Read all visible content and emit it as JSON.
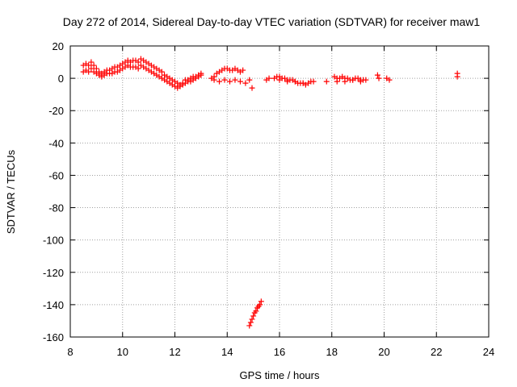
{
  "chart_data": {
    "type": "scatter",
    "title": "Day 272 of 2014, Sidereal Day-to-day VTEC variation (SDTVAR) for receiver maw1",
    "xlabel": "GPS time / hours",
    "ylabel": "SDTVAR / TECUs",
    "xlim": [
      8,
      24
    ],
    "ylim": [
      -160,
      20
    ],
    "xticks": [
      8,
      10,
      12,
      14,
      16,
      18,
      20,
      22,
      24
    ],
    "yticks": [
      20,
      0,
      -20,
      -40,
      -60,
      -80,
      -100,
      -120,
      -140,
      -160
    ],
    "grid": true,
    "marker": "+",
    "color": "#ff0000",
    "series": [
      {
        "name": "SDTVAR",
        "x": [
          8.5,
          8.6,
          8.7,
          8.8,
          8.9,
          9.0,
          9.1,
          9.2,
          9.3,
          9.4,
          9.5,
          9.6,
          9.7,
          9.8,
          9.9,
          10.0,
          10.1,
          10.2,
          10.3,
          10.4,
          10.5,
          10.6,
          10.7,
          10.8,
          10.9,
          11.0,
          11.1,
          11.2,
          11.3,
          11.4,
          11.5,
          11.6,
          11.7,
          11.8,
          11.9,
          12.0,
          12.1,
          12.2,
          12.3,
          12.4,
          12.5,
          12.6,
          12.7,
          12.8,
          12.9,
          13.0,
          8.5,
          8.6,
          8.7,
          8.8,
          8.9,
          9.0,
          9.1,
          9.2,
          9.3,
          9.4,
          9.5,
          9.6,
          9.7,
          9.8,
          9.9,
          10.0,
          10.1,
          10.2,
          10.3,
          10.4,
          10.5,
          10.6,
          10.7,
          10.8,
          10.9,
          11.0,
          11.1,
          11.2,
          11.3,
          11.4,
          11.5,
          11.6,
          11.7,
          11.8,
          11.9,
          12.0,
          12.1,
          12.2,
          12.3,
          12.4,
          12.5,
          12.6,
          12.7,
          12.8,
          12.9,
          13.0,
          13.4,
          13.5,
          13.6,
          13.7,
          13.8,
          13.9,
          14.0,
          14.1,
          14.2,
          14.3,
          14.4,
          14.5,
          14.6,
          13.5,
          13.7,
          13.9,
          14.1,
          14.3,
          14.5,
          14.85,
          14.95,
          14.7,
          15.5,
          15.6,
          15.8,
          15.9,
          16.0,
          16.1,
          16.2,
          16.3,
          16.4,
          16.5,
          16.6,
          16.7,
          16.8,
          16.9,
          17.0,
          17.1,
          17.2,
          17.3,
          16.0,
          16.3,
          16.6,
          16.9,
          17.8,
          18.1,
          18.2,
          18.3,
          18.4,
          18.5,
          18.6,
          18.7,
          18.8,
          18.9,
          19.0,
          19.1,
          19.2,
          19.3,
          18.2,
          18.5,
          18.8,
          19.1,
          19.75,
          19.8,
          20.1,
          20.2,
          22.8,
          22.8,
          14.85,
          14.9,
          14.95,
          15.0,
          15.05,
          15.1,
          15.15,
          15.2,
          15.25,
          15.3
        ],
        "y": [
          8,
          9,
          8,
          10,
          8,
          6,
          4,
          3,
          4,
          5,
          5,
          6,
          7,
          7,
          8,
          9,
          10,
          11,
          10,
          11,
          11,
          10,
          12,
          11,
          10,
          9,
          8,
          7,
          6,
          5,
          4,
          2,
          1,
          0,
          -1,
          -2,
          -3,
          -4,
          -3,
          -1,
          -1,
          0,
          1,
          1,
          2,
          3,
          4,
          5,
          4,
          6,
          4,
          3,
          2,
          1,
          2,
          3,
          3,
          3,
          4,
          4,
          5,
          6,
          7,
          8,
          7,
          7,
          7,
          6,
          8,
          7,
          6,
          5,
          4,
          3,
          2,
          1,
          0,
          -1,
          -2,
          -3,
          -4,
          -5,
          -6,
          -5,
          -4,
          -3,
          -2,
          -2,
          -1,
          0,
          1,
          2,
          0,
          1,
          3,
          4,
          5,
          6,
          6,
          5,
          5,
          6,
          5,
          4,
          5,
          -1,
          -2,
          -1,
          -2,
          -1,
          -2,
          -1,
          -6,
          -3,
          -1,
          0,
          0,
          1,
          1,
          0,
          0,
          -1,
          -1,
          -1,
          -2,
          -3,
          -3,
          -3,
          -4,
          -3,
          -2,
          -2,
          -1,
          -2,
          -2,
          -3,
          -2,
          1,
          0,
          0,
          1,
          0,
          0,
          -1,
          -1,
          0,
          0,
          -1,
          -1,
          -1,
          -2,
          -2,
          -1,
          -2,
          2,
          0,
          0,
          -1,
          3,
          1,
          -153,
          -151,
          -149,
          -147,
          -145,
          -144,
          -142,
          -141,
          -140,
          -138
        ]
      }
    ]
  }
}
